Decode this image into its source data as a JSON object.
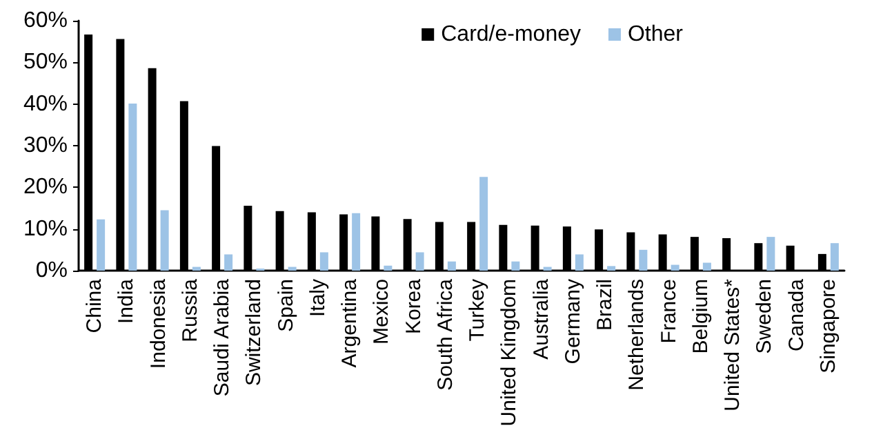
{
  "chart_data": {
    "type": "bar",
    "categories": [
      "China",
      "India",
      "Indonesia",
      "Russia",
      "Saudi Arabia",
      "Switzerland",
      "Spain",
      "Italy",
      "Argentina",
      "Mexico",
      "Korea",
      "South Africa",
      "Turkey",
      "United Kingdom",
      "Australia",
      "Germany",
      "Brazil",
      "Netherlands",
      "France",
      "Belgium",
      "United States*",
      "Sweden",
      "Canada",
      "Singapore"
    ],
    "series": [
      {
        "name": "Card/e-money",
        "color": "#000000",
        "values": [
          56.7,
          55.6,
          48.6,
          40.7,
          29.9,
          15.6,
          14.3,
          14.0,
          13.5,
          13.0,
          12.4,
          11.7,
          11.7,
          11.0,
          10.8,
          10.6,
          9.9,
          9.2,
          8.7,
          8.1,
          7.8,
          6.6,
          6.0,
          4.0
        ]
      },
      {
        "name": "Other",
        "color": "#9dc3e6",
        "values": [
          12.3,
          40.1,
          14.5,
          0.9,
          3.9,
          0.5,
          0.9,
          4.4,
          13.8,
          1.2,
          4.4,
          2.2,
          22.5,
          2.2,
          0.9,
          3.9,
          1.1,
          5.0,
          1.4,
          1.9,
          null,
          8.1,
          null,
          6.6
        ]
      }
    ],
    "ylim": [
      0,
      60
    ],
    "yticks": [
      {
        "value": 0,
        "label": "0%"
      },
      {
        "value": 10,
        "label": "10%"
      },
      {
        "value": 20,
        "label": "20%"
      },
      {
        "value": 30,
        "label": "30%"
      },
      {
        "value": 40,
        "label": "40%"
      },
      {
        "value": 50,
        "label": "50%"
      },
      {
        "value": 60,
        "label": "60%"
      }
    ],
    "grid": false,
    "legend": "top right"
  }
}
